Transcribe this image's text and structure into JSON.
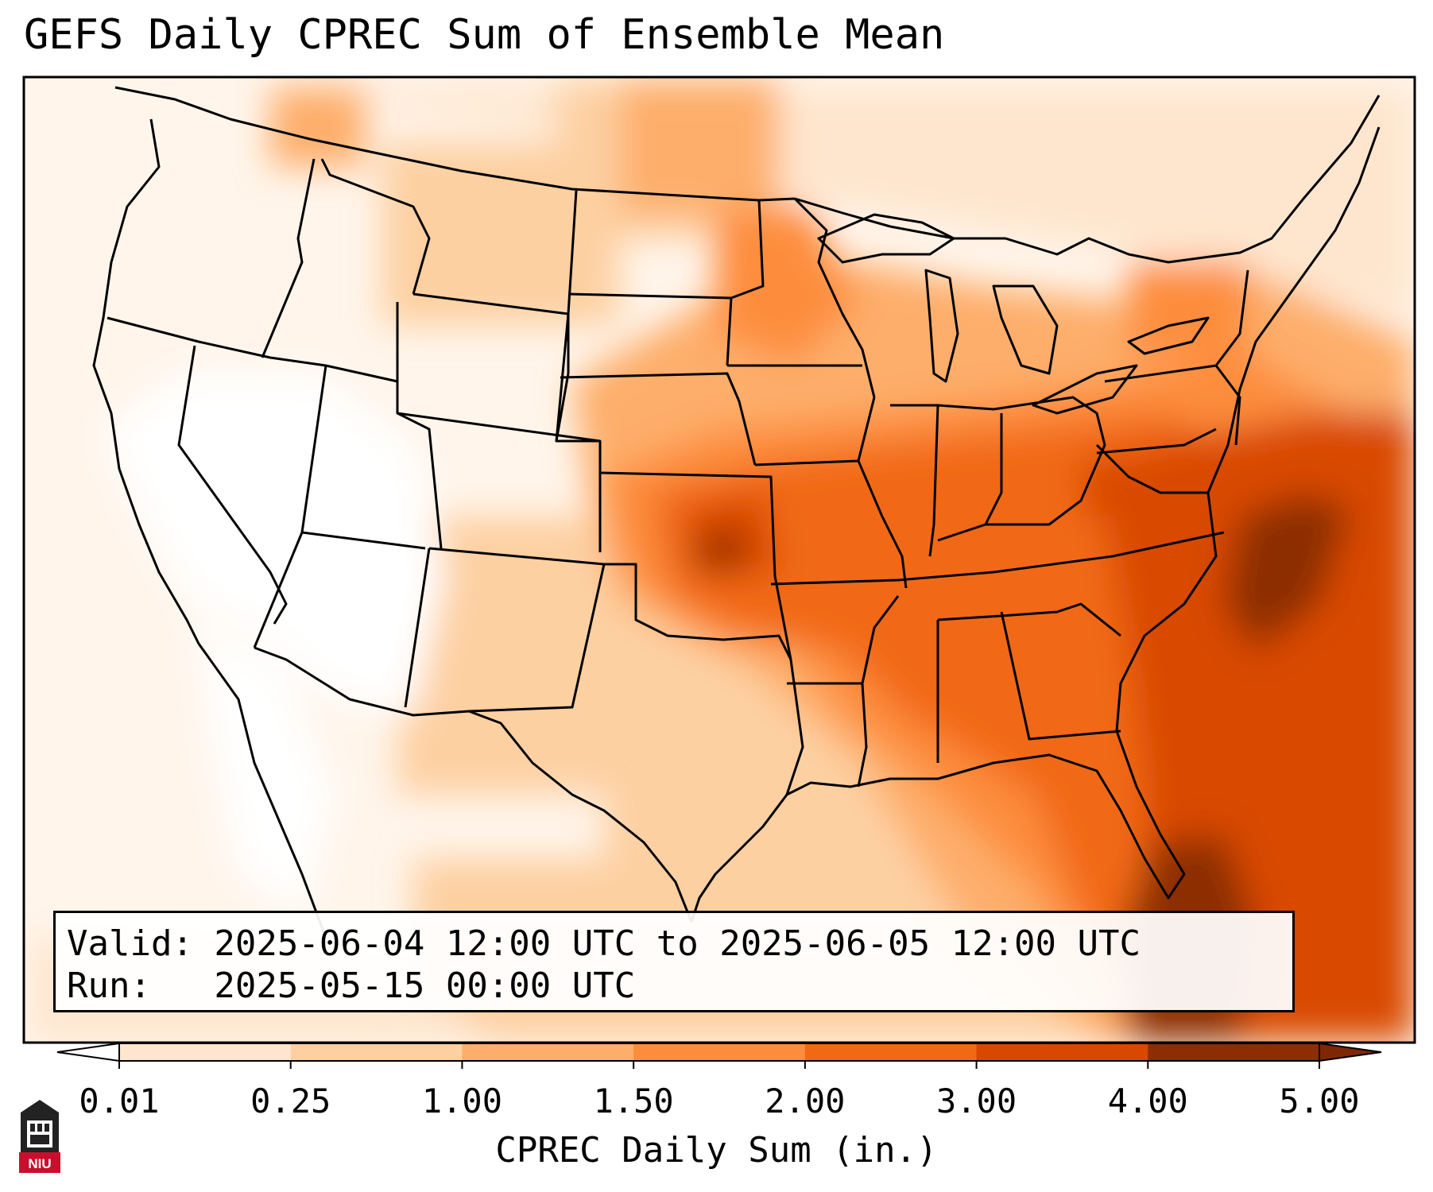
{
  "title": "GEFS Daily CPREC Sum of Ensemble Mean",
  "info": {
    "valid_line": "Valid: 2025-06-04 12:00 UTC to 2025-06-05 12:00 UTC",
    "run_line": "Run:   2025-05-15 00:00 UTC"
  },
  "colorbar": {
    "label": "CPREC Daily Sum (in.)",
    "ticks": [
      "0.01",
      "0.25",
      "1.00",
      "1.50",
      "2.00",
      "3.00",
      "4.00",
      "5.00"
    ],
    "colors": [
      "#fff5eb",
      "#fee6ce",
      "#fdd0a2",
      "#fdae6b",
      "#fd8d3c",
      "#f16913",
      "#d94801",
      "#8c2d04"
    ],
    "under_color": "#ffffff",
    "over_color": "#7f2704"
  },
  "logo": {
    "text": "NIU",
    "color": "#c8102e"
  },
  "map": {
    "projection": "Lambert Conformal",
    "region": "Contiguous United States"
  }
}
